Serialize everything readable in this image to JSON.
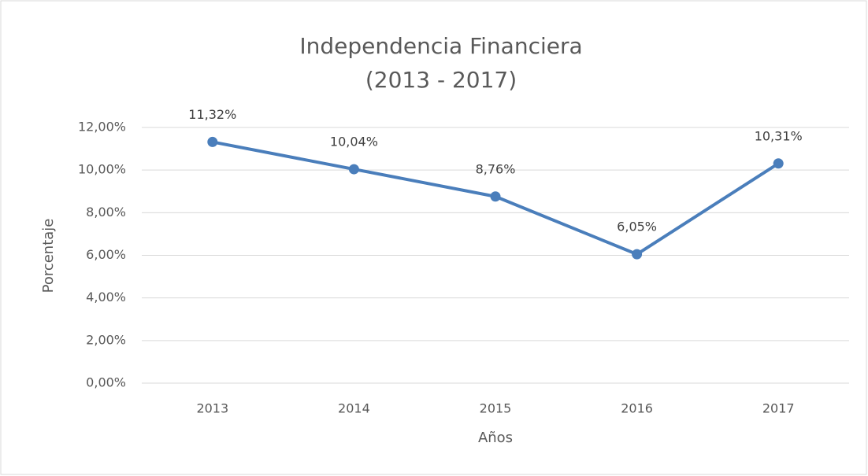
{
  "chart_data": {
    "type": "line",
    "title": [
      "Independencia Financiera",
      "(2013 - 2017)"
    ],
    "x_label": "Años",
    "y_label": "Porcentaje",
    "categories": [
      "2013",
      "2014",
      "2015",
      "2016",
      "2017"
    ],
    "series": [
      {
        "name": "Independencia Financiera",
        "color": "#4a7ebb",
        "values": [
          11.32,
          10.04,
          8.76,
          6.05,
          10.31
        ],
        "value_labels": [
          "11,32%",
          "10,04%",
          "8,76%",
          "6,05%",
          "10,31%"
        ]
      }
    ],
    "ylim": [
      0,
      12
    ],
    "yticks": [
      {
        "value": 0,
        "label": "0,00%"
      },
      {
        "value": 2,
        "label": "2,00%"
      },
      {
        "value": 4,
        "label": "4,00%"
      },
      {
        "value": 6,
        "label": "6,00%"
      },
      {
        "value": 8,
        "label": "8,00%"
      },
      {
        "value": 10,
        "label": "10,00%"
      },
      {
        "value": 12,
        "label": "12,00%"
      }
    ],
    "grid": true
  }
}
